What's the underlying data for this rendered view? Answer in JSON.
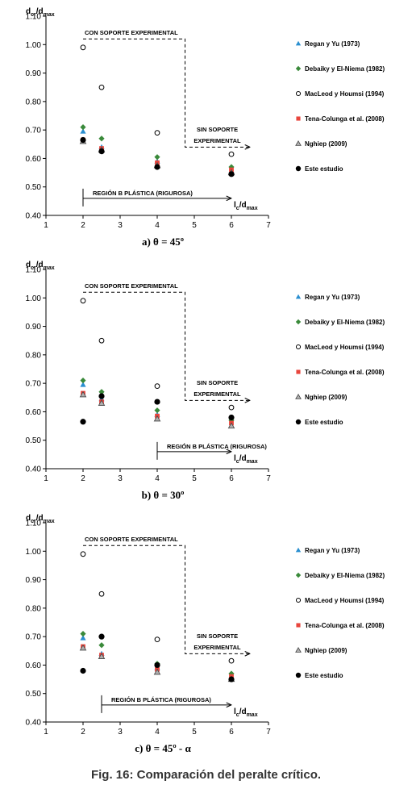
{
  "figure_caption": "Fig. 16: Comparación del peralte crítico.",
  "legend_series": [
    {
      "name": "Regan y Yu (1973)",
      "marker": "triangle",
      "color": "#2a8fd0"
    },
    {
      "name": "Debaiky y El-Niema (1982)",
      "marker": "diamond",
      "color": "#3a8a3a"
    },
    {
      "name": "MacLeod y Houmsi (1994)",
      "marker": "open-circle",
      "color": "#000000"
    },
    {
      "name": "Tena-Colunga et al. (2008)",
      "marker": "square",
      "color": "#e8453c"
    },
    {
      "name": "Nghiep (2009)",
      "marker": "gray-triangle",
      "color": "#888888"
    },
    {
      "name": "Este estudio",
      "marker": "circle",
      "color": "#000000"
    }
  ],
  "annotations": {
    "con_soporte": "CON SOPORTE EXPERIMENTAL",
    "sin_soporte_1": "SIN SOPORTE",
    "sin_soporte_2": "EXPERIMENTAL"
  },
  "chart_data": [
    {
      "type": "scatter",
      "panel_caption": "a) θ = 45º",
      "ylabel": {
        "main": "d",
        "sub1": "cr",
        "mid": "/d",
        "sub2": "max"
      },
      "xlabel": {
        "main": "l",
        "sub1": "c",
        "mid": "/d",
        "sub2": "max"
      },
      "xlim": [
        1,
        7
      ],
      "ylim": [
        0.4,
        1.1
      ],
      "xticks": [
        "1",
        "2",
        "3",
        "4",
        "5",
        "6",
        "7"
      ],
      "yticks": [
        "0.40",
        "0.50",
        "0.60",
        "0.70",
        "0.80",
        "0.90",
        "1.00",
        "1.10"
      ],
      "region_label": "REGIÓN B PLÁSTICA (RIGUROSA)",
      "region_range": [
        2,
        6
      ],
      "series": [
        {
          "name": "Regan y Yu (1973)",
          "x": [
            2,
            2.5,
            4,
            6
          ],
          "y": [
            0.695,
            0.64,
            0.59,
            0.555
          ]
        },
        {
          "name": "Debaiky y El-Niema (1982)",
          "x": [
            2,
            2.5,
            4,
            6
          ],
          "y": [
            0.71,
            0.67,
            0.605,
            0.57
          ]
        },
        {
          "name": "MacLeod y Houmsi (1994)",
          "x": [
            2,
            2.5,
            4,
            6
          ],
          "y": [
            0.99,
            0.85,
            0.69,
            0.615
          ]
        },
        {
          "name": "Tena-Colunga et al. (2008)",
          "x": [
            2,
            2.5,
            4,
            6
          ],
          "y": [
            0.665,
            0.635,
            0.585,
            0.56
          ]
        },
        {
          "name": "Nghiep (2009)",
          "x": [
            2,
            2.5,
            4,
            6
          ],
          "y": [
            0.66,
            0.63,
            0.575,
            0.55
          ]
        },
        {
          "name": "Este estudio",
          "x": [
            2,
            2.5,
            4,
            6
          ],
          "y": [
            0.665,
            0.625,
            0.57,
            0.545
          ]
        }
      ]
    },
    {
      "type": "scatter",
      "panel_caption": "b) θ = 30º",
      "ylabel": {
        "main": "d",
        "sub1": "cr",
        "mid": "/d",
        "sub2": "max"
      },
      "xlabel": {
        "main": "l",
        "sub1": "c",
        "mid": "/d",
        "sub2": "max"
      },
      "xlim": [
        1,
        7
      ],
      "ylim": [
        0.4,
        1.1
      ],
      "xticks": [
        "1",
        "2",
        "3",
        "4",
        "5",
        "6",
        "7"
      ],
      "yticks": [
        "0.40",
        "0.50",
        "0.60",
        "0.70",
        "0.80",
        "0.90",
        "1.00",
        "1.10"
      ],
      "region_label": "REGIÓN B PLÁSTICA (RIGUROSA)",
      "region_range": [
        4,
        6
      ],
      "series": [
        {
          "name": "Regan y Yu (1973)",
          "x": [
            2,
            2.5,
            4,
            6
          ],
          "y": [
            0.695,
            0.645,
            0.59,
            0.55
          ]
        },
        {
          "name": "Debaiky y El-Niema (1982)",
          "x": [
            2,
            2.5,
            4,
            6
          ],
          "y": [
            0.71,
            0.67,
            0.605,
            0.57
          ]
        },
        {
          "name": "MacLeod y Houmsi (1994)",
          "x": [
            2,
            2.5,
            4,
            6
          ],
          "y": [
            0.99,
            0.85,
            0.69,
            0.615
          ]
        },
        {
          "name": "Tena-Colunga et al. (2008)",
          "x": [
            2,
            2.5,
            4,
            6
          ],
          "y": [
            0.665,
            0.635,
            0.585,
            0.56
          ]
        },
        {
          "name": "Nghiep (2009)",
          "x": [
            2,
            2.5,
            4,
            6
          ],
          "y": [
            0.66,
            0.63,
            0.575,
            0.55
          ]
        },
        {
          "name": "Este estudio",
          "x": [
            2,
            2.5,
            4,
            6
          ],
          "y": [
            0.565,
            0.655,
            0.635,
            0.58
          ]
        }
      ]
    },
    {
      "type": "scatter",
      "panel_caption": "c) θ = 45º - α",
      "ylabel": {
        "main": "d",
        "sub1": "cr",
        "mid": "/d",
        "sub2": "max"
      },
      "xlabel": {
        "main": "l",
        "sub1": "c",
        "mid": "/d",
        "sub2": "max"
      },
      "xlim": [
        1,
        7
      ],
      "ylim": [
        0.4,
        1.1
      ],
      "xticks": [
        "1",
        "2",
        "3",
        "4",
        "5",
        "6",
        "7"
      ],
      "yticks": [
        "0.40",
        "0.50",
        "0.60",
        "0.70",
        "0.80",
        "0.90",
        "1.00",
        "1.10"
      ],
      "region_label": "REGIÓN B PLÁSTICA (RIGUROSA)",
      "region_range": [
        2.5,
        6
      ],
      "series": [
        {
          "name": "Regan y Yu (1973)",
          "x": [
            2,
            2.5,
            4,
            6
          ],
          "y": [
            0.695,
            0.64,
            0.59,
            0.55
          ]
        },
        {
          "name": "Debaiky y El-Niema (1982)",
          "x": [
            2,
            2.5,
            4,
            6
          ],
          "y": [
            0.71,
            0.67,
            0.605,
            0.57
          ]
        },
        {
          "name": "MacLeod y Houmsi (1994)",
          "x": [
            2,
            2.5,
            4,
            6
          ],
          "y": [
            0.99,
            0.85,
            0.69,
            0.615
          ]
        },
        {
          "name": "Tena-Colunga et al. (2008)",
          "x": [
            2,
            2.5,
            4,
            6
          ],
          "y": [
            0.665,
            0.635,
            0.585,
            0.56
          ]
        },
        {
          "name": "Nghiep (2009)",
          "x": [
            2,
            2.5,
            4,
            6
          ],
          "y": [
            0.66,
            0.63,
            0.575,
            0.55
          ]
        },
        {
          "name": "Este estudio",
          "x": [
            2,
            2.5,
            4,
            6
          ],
          "y": [
            0.58,
            0.7,
            0.6,
            0.55
          ]
        }
      ]
    }
  ]
}
